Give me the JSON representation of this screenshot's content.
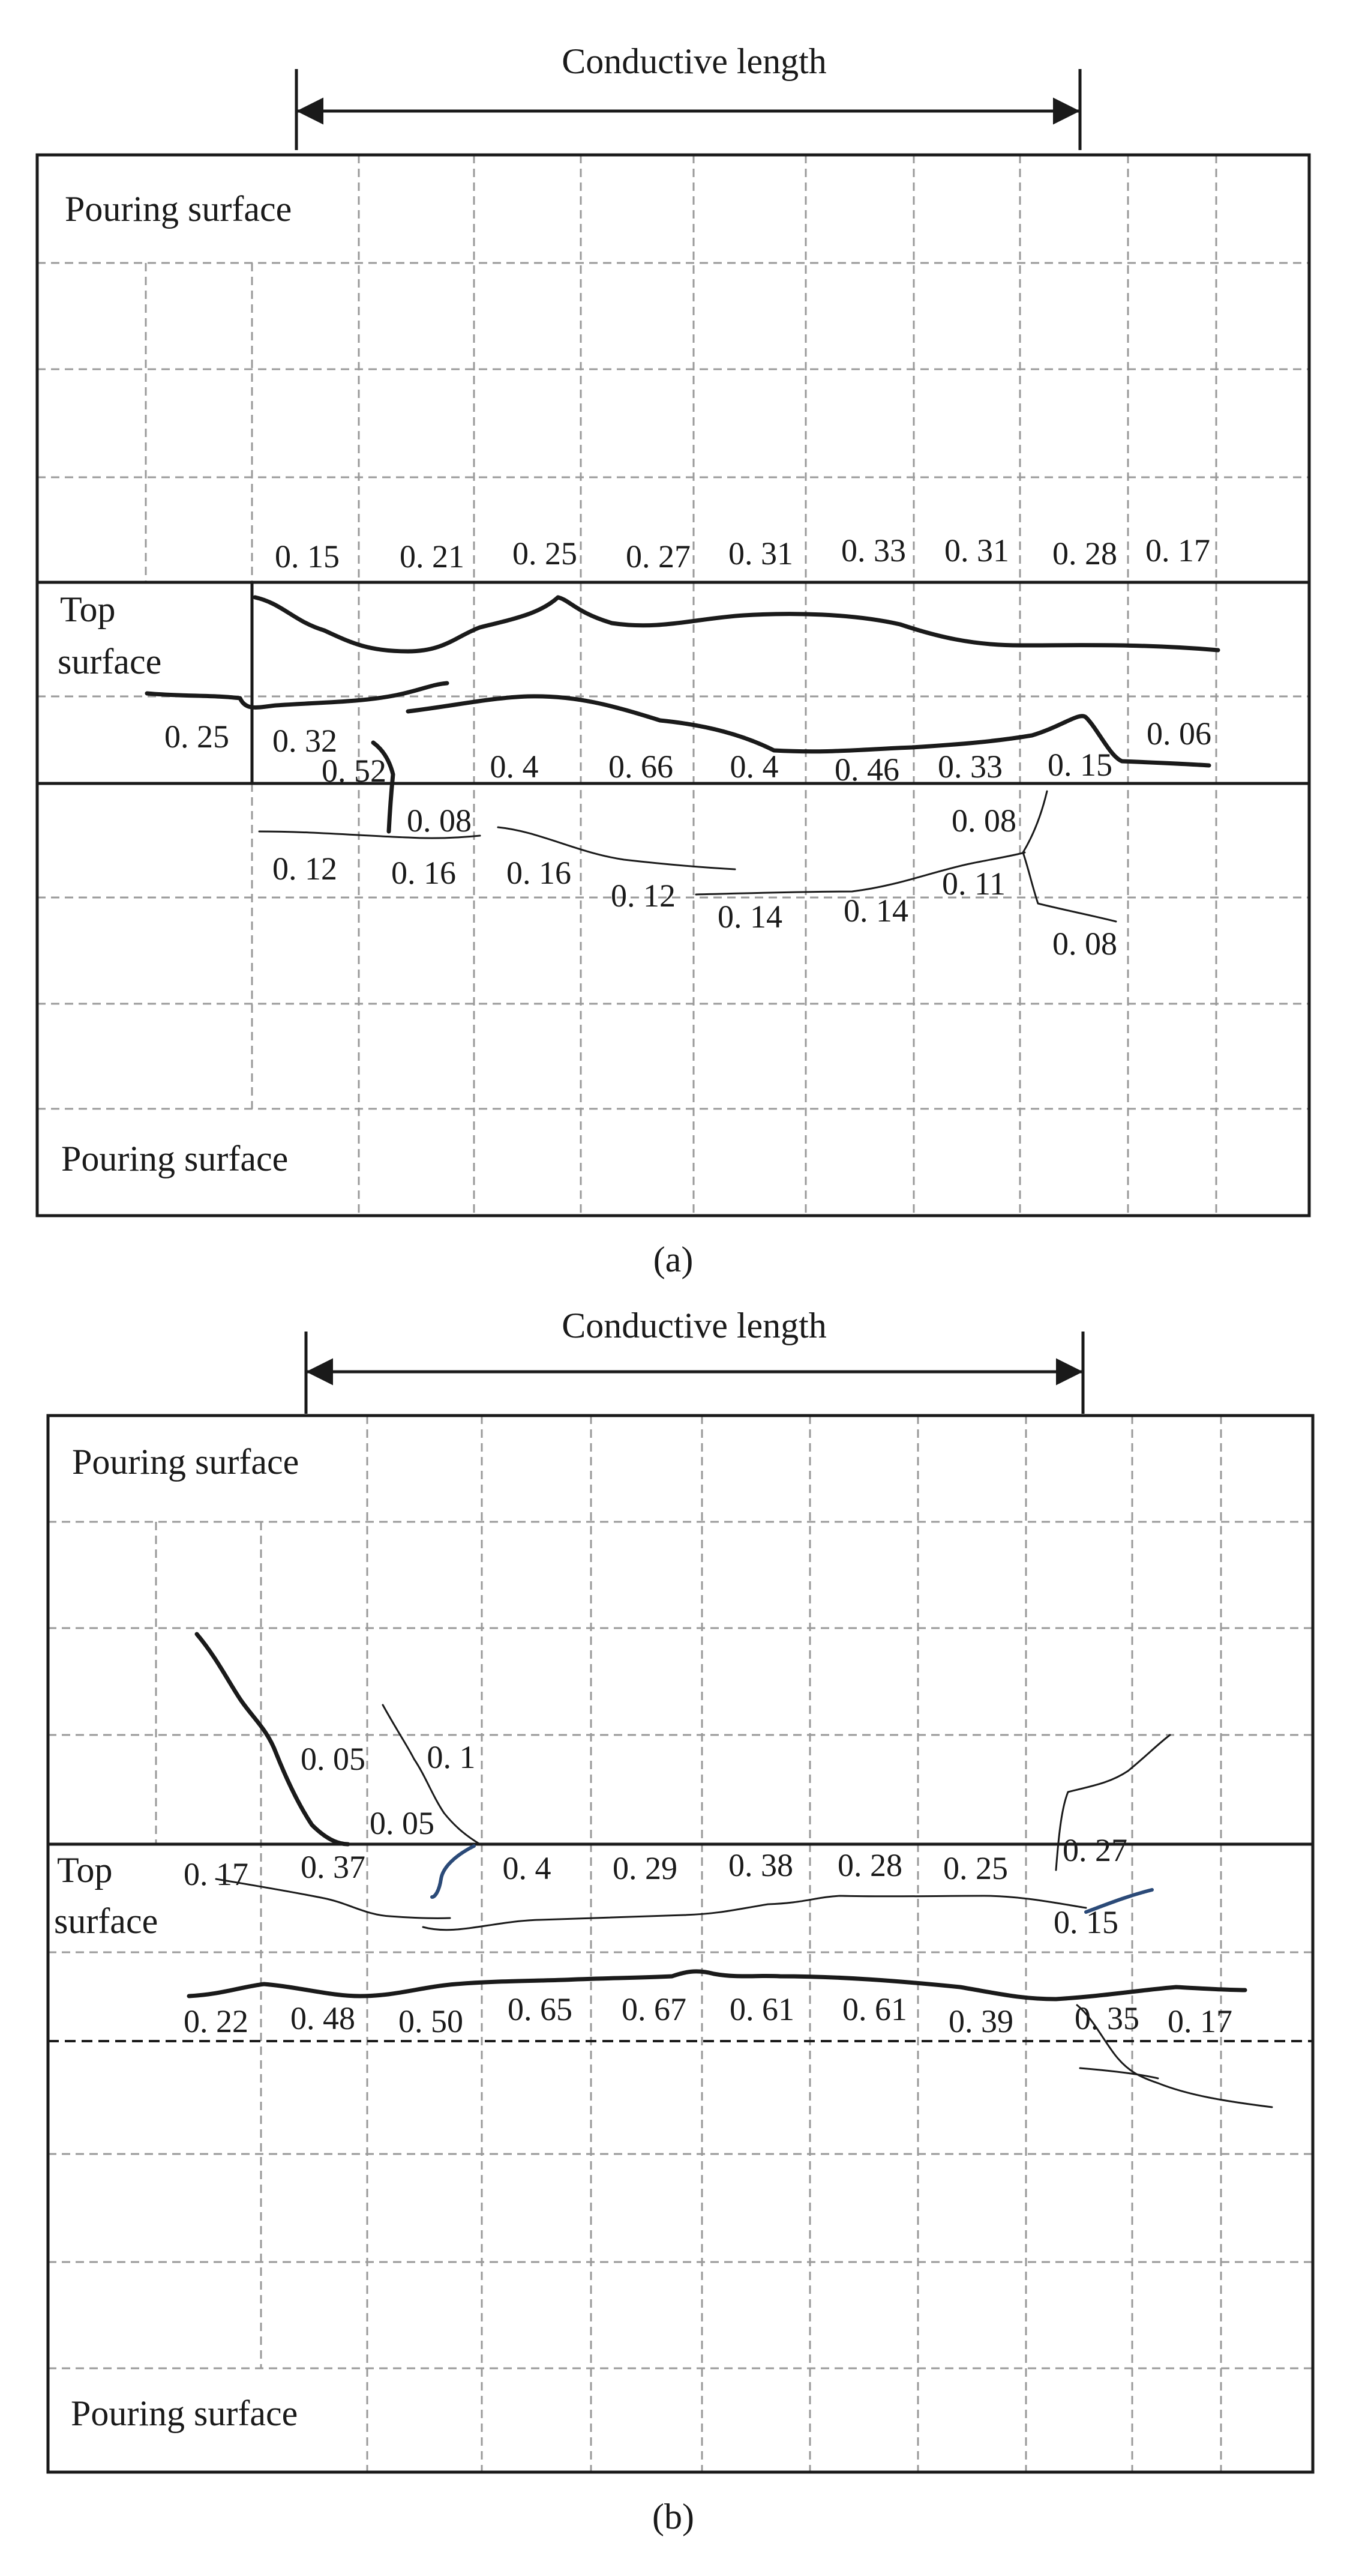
{
  "panel_a": {
    "caption": "(a)",
    "conductive_length_label": "Conductive length",
    "pouring_surface_top": "Pouring surface",
    "pouring_surface_bottom": "Pouring surface",
    "top_surface_line1": "Top",
    "top_surface_line2": "surface",
    "crack_widths": {
      "row1": [
        "0. 15",
        "0. 21",
        "0. 25",
        "0. 27",
        "0. 31",
        "0. 33",
        "0. 31",
        "0. 28",
        "0. 17"
      ],
      "row2": [
        "0. 25",
        "0. 32",
        "0. 52",
        "0. 4",
        "0. 66",
        "0. 4",
        "0. 46",
        "0. 33",
        "0. 15",
        "0. 06"
      ],
      "row3": [
        "0. 08",
        "0. 08",
        "0. 12",
        "0. 16",
        "0. 16",
        "0. 12",
        "0. 14",
        "0. 14",
        "0. 11",
        "0. 08"
      ]
    }
  },
  "panel_b": {
    "caption": "(b)",
    "conductive_length_label": "Conductive length",
    "pouring_surface_top": "Pouring surface",
    "pouring_surface_bottom": "Pouring surface",
    "top_surface_line1": "Top",
    "top_surface_line2": "surface",
    "crack_widths": {
      "upper": [
        "0. 05",
        "0. 1",
        "0. 05",
        "0. 27"
      ],
      "row1": [
        "0. 17",
        "0. 37",
        "0. 4",
        "0. 29",
        "0. 38",
        "0. 28",
        "0. 25",
        "0. 15"
      ],
      "row2": [
        "0. 22",
        "0. 48",
        "0. 50",
        "0. 65",
        "0. 67",
        "0. 61",
        "0. 61",
        "0. 39",
        "0. 35",
        "0. 17"
      ]
    }
  }
}
